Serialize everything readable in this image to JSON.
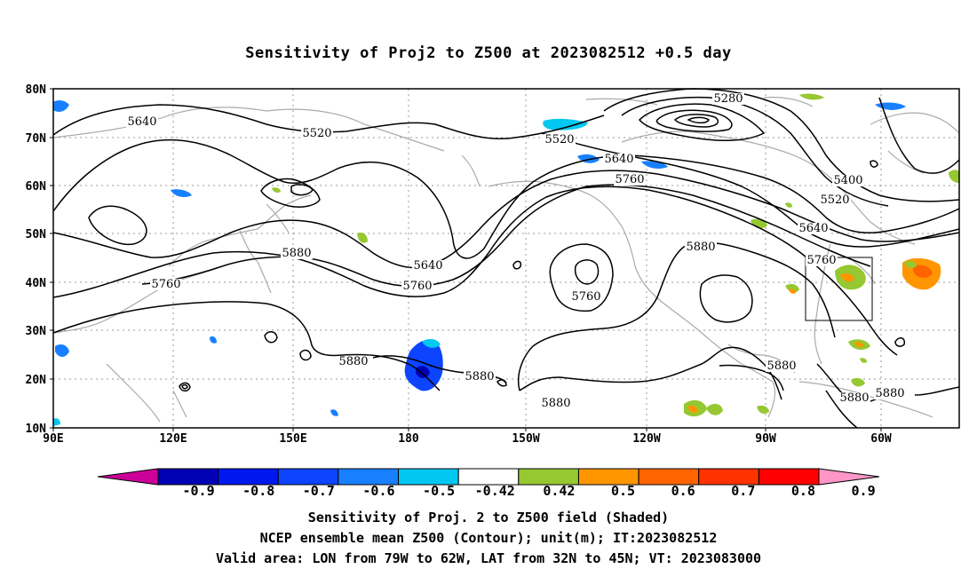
{
  "title": "Sensitivity of Proj2 to Z500 at 2023082512 +0.5 day",
  "lat_labels": [
    "80N",
    "70N",
    "60N",
    "50N",
    "40N",
    "30N",
    "20N",
    "10N"
  ],
  "lon_labels": [
    "90E",
    "120E",
    "150E",
    "180",
    "150W",
    "120W",
    "90W",
    "60W"
  ],
  "contour_labels": [
    {
      "text": "5280"
    },
    {
      "text": "5400"
    },
    {
      "text": "5520"
    },
    {
      "text": "5520"
    },
    {
      "text": "5520"
    },
    {
      "text": "5640"
    },
    {
      "text": "5640"
    },
    {
      "text": "5640"
    },
    {
      "text": "5640"
    },
    {
      "text": "5760"
    },
    {
      "text": "5760"
    },
    {
      "text": "5760"
    },
    {
      "text": "5760"
    },
    {
      "text": "5760"
    },
    {
      "text": "5880"
    },
    {
      "text": "5880"
    },
    {
      "text": "5880"
    },
    {
      "text": "5880"
    },
    {
      "text": "5880"
    },
    {
      "text": "5880"
    },
    {
      "text": "5880"
    },
    {
      "text": "5880"
    }
  ],
  "colorbar": {
    "labels": [
      "-0.9",
      "-0.8",
      "-0.7",
      "-0.6",
      "-0.5",
      "-0.42",
      "0.42",
      "0.5",
      "0.6",
      "0.7",
      "0.8",
      "0.9"
    ],
    "colors": [
      "#cc0099",
      "#0000b4",
      "#0018f0",
      "#0c44ff",
      "#1880ff",
      "#00c8f0",
      "#ffffff",
      "#96c832",
      "#ff9600",
      "#ff6400",
      "#ff3200",
      "#ff0000",
      "#ff96c8"
    ]
  },
  "valid_area": {
    "lon_min": "79W",
    "lon_max": "62W",
    "lat_min": "32N",
    "lat_max": "45N"
  },
  "captions": {
    "line1": "Sensitivity of Proj. 2 to Z500 field (Shaded)",
    "line2": "NCEP ensemble mean Z500 (Contour); unit(m); IT:2023082512",
    "line3": "Valid area: LON from 79W to 62W, LAT from 32N to 45N; VT: 2023083000"
  },
  "colors": {
    "contour": "#000000",
    "coastline": "#aaaaaa",
    "grid": "#999999"
  }
}
